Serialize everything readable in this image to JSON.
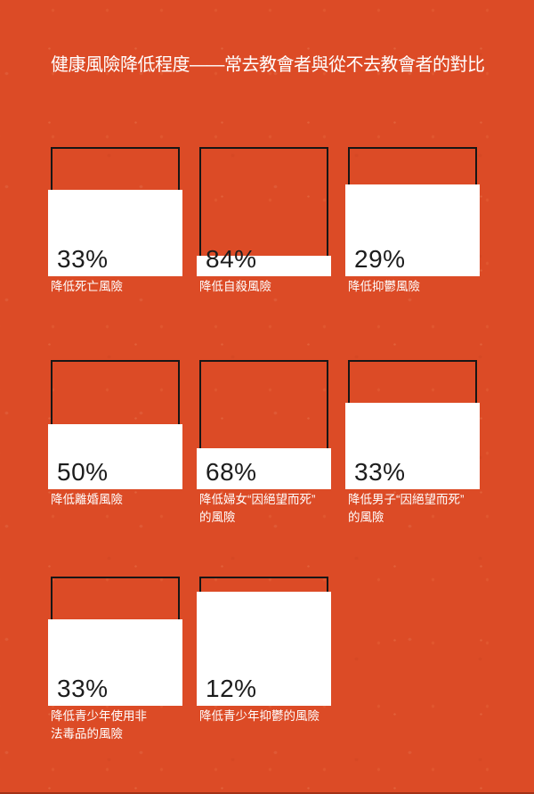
{
  "title": "健康風險降低程度——常去教會者與從不去教會者的對比",
  "colors": {
    "background": "#DC4B26",
    "card_fill": "#FFFFFF",
    "outline": "#161616",
    "percent_text": "#1C1C1C",
    "caption_text": "#FFFFFF",
    "title_text": "#FFFFFF"
  },
  "chart_data": {
    "type": "bar",
    "title": "健康風險降低程度——常去教會者與從不去教會者的對比",
    "unit": "%",
    "layout": "3x3 grid of square pictogram bars; white block height represents remaining share (100 − value), value printed inside block",
    "items": [
      {
        "value": 33,
        "label": "33%",
        "caption": "降低死亡風險"
      },
      {
        "value": 84,
        "label": "84%",
        "caption": "降低自殺風險"
      },
      {
        "value": 29,
        "label": "29%",
        "caption": "降低抑鬱風險"
      },
      {
        "value": 50,
        "label": "50%",
        "caption": "降低離婚風險"
      },
      {
        "value": 68,
        "label": "68%",
        "caption": "降低婦女“因絕望而死”\n的風險"
      },
      {
        "value": 33,
        "label": "33%",
        "caption": "降低男子“因絕望而死”\n的風險"
      },
      {
        "value": 33,
        "label": "33%",
        "caption": "降低青少年使用非\n法毒品的風險"
      },
      {
        "value": 12,
        "label": "12%",
        "caption": "降低青少年抑鬱的風險"
      }
    ]
  }
}
